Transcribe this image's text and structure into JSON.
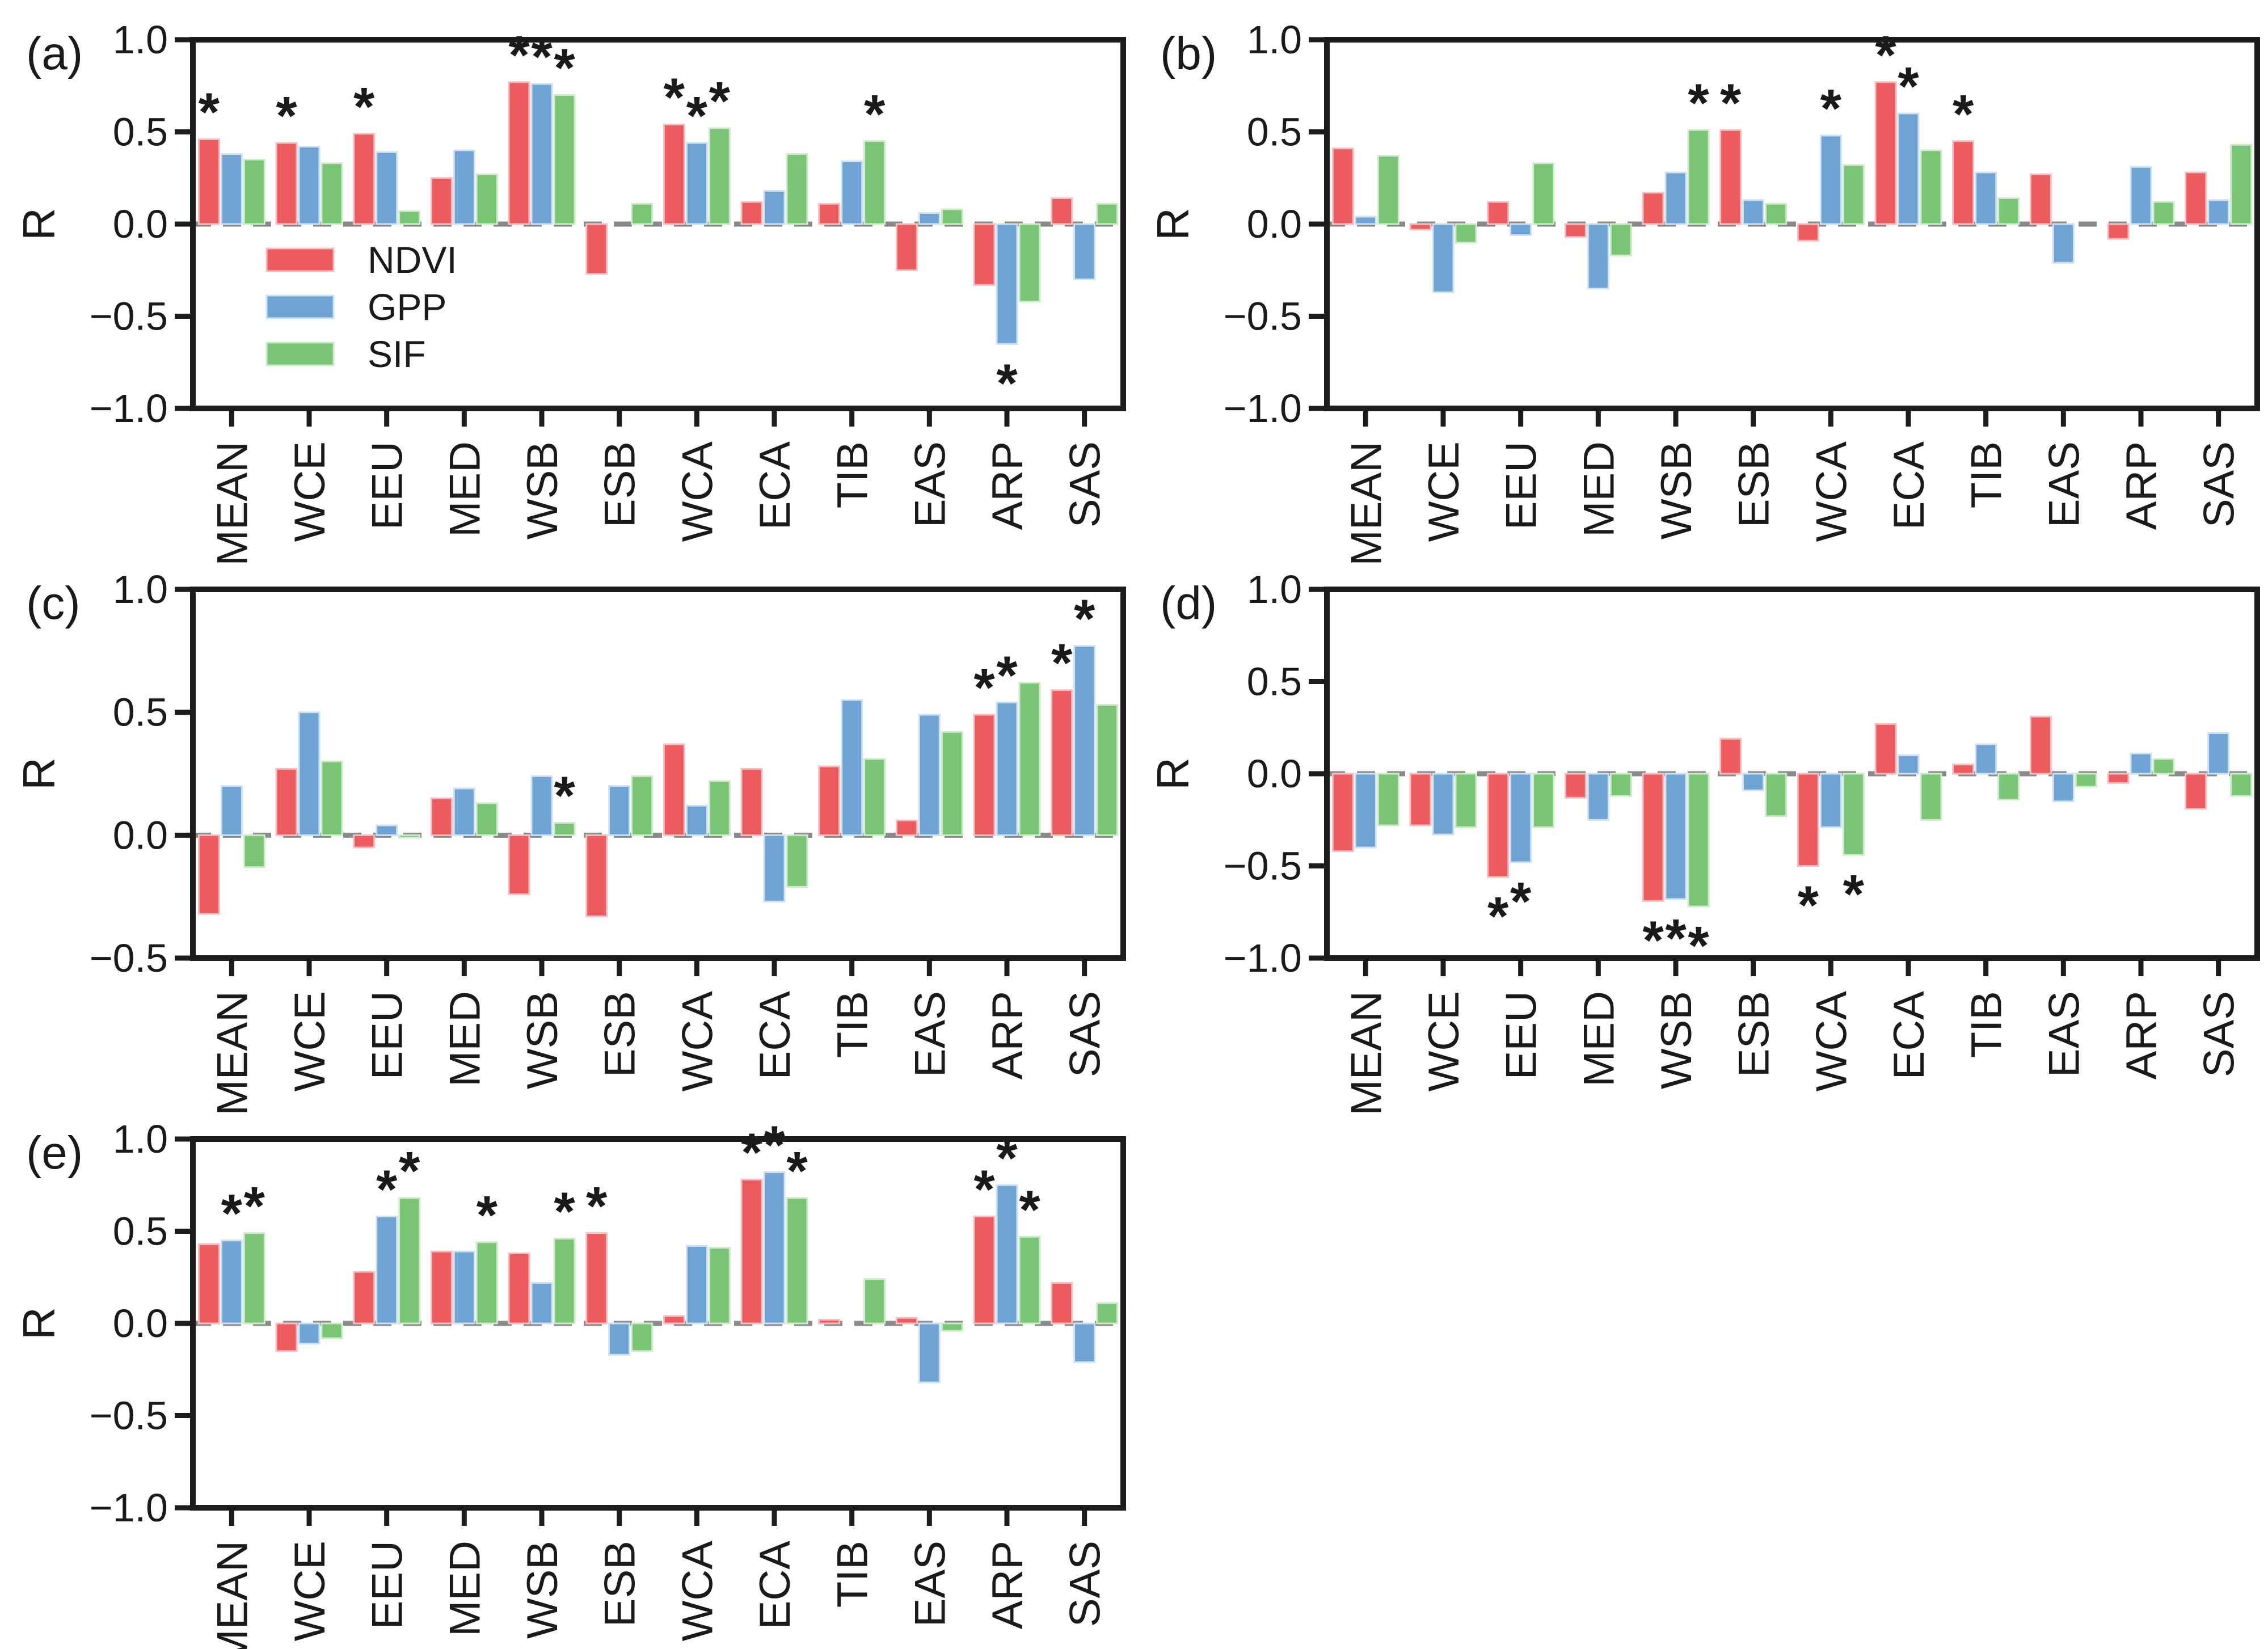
{
  "figure_title": "",
  "ylabel": "R",
  "styles": {
    "background": "#ffffff",
    "axis_color": "#1c1c1c",
    "text_color": "#1a1a1a",
    "zero_line_color": "#8a8a8a",
    "star_color": "#111111"
  },
  "legend": {
    "position": "inside-lower-left-of-panel-a",
    "items": [
      {
        "label": "NDVI",
        "color": "#ec5c5e",
        "edge": "#f7bdc0"
      },
      {
        "label": "GPP",
        "color": "#6fa3d4",
        "edge": "#cde1f2"
      },
      {
        "label": "SIF",
        "color": "#7ac476",
        "edge": "#cdeac9"
      }
    ]
  },
  "chart_data": [
    {
      "type": "bar",
      "id": "a",
      "panel": "(a)",
      "ylabel": "R",
      "ylim": [
        -1.0,
        1.0
      ],
      "yticks": [
        "1.0",
        "0.5",
        "0.0",
        "−0.5",
        "−1.0"
      ],
      "grid": false,
      "zero_line": "dashed",
      "show_legend": true,
      "categories": [
        "MEAN",
        "WCE",
        "EEU",
        "MED",
        "WSB",
        "ESB",
        "WCA",
        "ECA",
        "TIB",
        "EAS",
        "ARP",
        "SAS"
      ],
      "series": [
        {
          "name": "NDVI",
          "color": "#ec5c5e",
          "edge": "#f7bdc0",
          "values": [
            0.46,
            0.44,
            0.49,
            0.25,
            0.77,
            -0.27,
            0.54,
            0.12,
            0.11,
            -0.25,
            -0.33,
            0.14
          ],
          "significant_categories": [
            "MEAN",
            "WCE",
            "EEU",
            "WSB",
            "WCA"
          ]
        },
        {
          "name": "GPP",
          "color": "#6fa3d4",
          "edge": "#cde1f2",
          "values": [
            0.38,
            0.42,
            0.39,
            0.4,
            0.76,
            0.0,
            0.44,
            0.18,
            0.34,
            0.06,
            -0.65,
            -0.3
          ],
          "significant_categories": [
            "WSB",
            "WCA",
            "ARP"
          ]
        },
        {
          "name": "SIF",
          "color": "#7ac476",
          "edge": "#cdeac9",
          "values": [
            0.35,
            0.33,
            0.07,
            0.27,
            0.7,
            0.11,
            0.52,
            0.38,
            0.45,
            0.08,
            -0.42,
            0.11
          ],
          "significant_categories": [
            "WSB",
            "WCA",
            "TIB"
          ]
        }
      ]
    },
    {
      "type": "bar",
      "id": "b",
      "panel": "(b)",
      "ylabel": "R",
      "ylim": [
        -1.0,
        1.0
      ],
      "yticks": [
        "1.0",
        "0.5",
        "0.0",
        "−0.5",
        "−1.0"
      ],
      "grid": false,
      "zero_line": "dashed",
      "show_legend": false,
      "categories": [
        "MEAN",
        "WCE",
        "EEU",
        "MED",
        "WSB",
        "ESB",
        "WCA",
        "ECA",
        "TIB",
        "EAS",
        "ARP",
        "SAS"
      ],
      "series": [
        {
          "name": "NDVI",
          "color": "#ec5c5e",
          "edge": "#f7bdc0",
          "values": [
            0.41,
            -0.03,
            0.12,
            -0.07,
            0.17,
            0.51,
            -0.09,
            0.77,
            0.45,
            0.27,
            -0.08,
            0.28
          ],
          "significant_categories": [
            "ESB",
            "ECA",
            "TIB"
          ]
        },
        {
          "name": "GPP",
          "color": "#6fa3d4",
          "edge": "#cde1f2",
          "values": [
            0.04,
            -0.37,
            -0.06,
            -0.35,
            0.28,
            0.13,
            0.48,
            0.6,
            0.28,
            -0.21,
            0.31,
            0.13
          ],
          "significant_categories": [
            "WCA",
            "ECA"
          ]
        },
        {
          "name": "SIF",
          "color": "#7ac476",
          "edge": "#cdeac9",
          "values": [
            0.37,
            -0.1,
            0.33,
            -0.17,
            0.51,
            0.11,
            0.32,
            0.4,
            0.14,
            0.0,
            0.12,
            0.43
          ],
          "significant_categories": [
            "WSB"
          ]
        }
      ]
    },
    {
      "type": "bar",
      "id": "c",
      "panel": "(c)",
      "ylabel": "R",
      "ylim": [
        -0.5,
        1.0
      ],
      "yticks": [
        "1.0",
        "0.5",
        "0.0",
        "−0.5"
      ],
      "grid": false,
      "zero_line": "dashed",
      "show_legend": false,
      "categories": [
        "MEAN",
        "WCE",
        "EEU",
        "MED",
        "WSB",
        "ESB",
        "WCA",
        "ECA",
        "TIB",
        "EAS",
        "ARP",
        "SAS"
      ],
      "series": [
        {
          "name": "NDVI",
          "color": "#ec5c5e",
          "edge": "#f7bdc0",
          "values": [
            -0.32,
            0.27,
            -0.05,
            0.15,
            -0.24,
            -0.33,
            0.37,
            0.27,
            0.28,
            0.06,
            0.49,
            0.59
          ],
          "significant_categories": [
            "ARP",
            "SAS"
          ]
        },
        {
          "name": "GPP",
          "color": "#6fa3d4",
          "edge": "#cde1f2",
          "values": [
            0.2,
            0.5,
            0.04,
            0.19,
            0.24,
            0.2,
            0.12,
            -0.27,
            0.55,
            0.49,
            0.54,
            0.77
          ],
          "significant_categories": [
            "ARP",
            "SAS"
          ]
        },
        {
          "name": "SIF",
          "color": "#7ac476",
          "edge": "#cdeac9",
          "values": [
            -0.13,
            0.3,
            -0.01,
            0.13,
            0.05,
            0.24,
            0.22,
            -0.21,
            0.31,
            0.42,
            0.62,
            0.53
          ],
          "significant_categories": [
            "WSB"
          ]
        }
      ]
    },
    {
      "type": "bar",
      "id": "d",
      "panel": "(d)",
      "ylabel": "R",
      "ylim": [
        -1.0,
        1.0
      ],
      "yticks": [
        "1.0",
        "0.5",
        "0.0",
        "−0.5",
        "−1.0"
      ],
      "grid": false,
      "zero_line": "dashed",
      "show_legend": false,
      "categories": [
        "MEAN",
        "WCE",
        "EEU",
        "MED",
        "WSB",
        "ESB",
        "WCA",
        "ECA",
        "TIB",
        "EAS",
        "ARP",
        "SAS"
      ],
      "series": [
        {
          "name": "NDVI",
          "color": "#ec5c5e",
          "edge": "#f7bdc0",
          "values": [
            -0.42,
            -0.28,
            -0.56,
            -0.13,
            -0.69,
            0.19,
            -0.5,
            0.27,
            0.05,
            0.31,
            -0.05,
            -0.19
          ],
          "significant_categories": [
            "EEU",
            "WSB",
            "WCA"
          ]
        },
        {
          "name": "GPP",
          "color": "#6fa3d4",
          "edge": "#cde1f2",
          "values": [
            -0.4,
            -0.33,
            -0.48,
            -0.25,
            -0.68,
            -0.09,
            -0.29,
            0.1,
            0.16,
            -0.15,
            0.11,
            0.22
          ],
          "significant_categories": [
            "EEU",
            "WSB"
          ]
        },
        {
          "name": "SIF",
          "color": "#7ac476",
          "edge": "#cdeac9",
          "values": [
            -0.28,
            -0.29,
            -0.29,
            -0.12,
            -0.72,
            -0.23,
            -0.44,
            -0.25,
            -0.14,
            -0.07,
            0.08,
            -0.12
          ],
          "significant_categories": [
            "WSB",
            "WCA"
          ]
        }
      ]
    },
    {
      "type": "bar",
      "id": "e",
      "panel": "(e)",
      "ylabel": "R",
      "ylim": [
        -1.0,
        1.0
      ],
      "yticks": [
        "1.0",
        "0.5",
        "0.0",
        "−0.5",
        "−1.0"
      ],
      "grid": false,
      "zero_line": "dashed",
      "show_legend": false,
      "categories": [
        "MEAN",
        "WCE",
        "EEU",
        "MED",
        "WSB",
        "ESB",
        "WCA",
        "ECA",
        "TIB",
        "EAS",
        "ARP",
        "SAS"
      ],
      "series": [
        {
          "name": "NDVI",
          "color": "#ec5c5e",
          "edge": "#f7bdc0",
          "values": [
            0.43,
            -0.15,
            0.28,
            0.39,
            0.38,
            0.49,
            0.04,
            0.78,
            0.02,
            0.03,
            0.58,
            0.22
          ],
          "significant_categories": [
            "ESB",
            "ECA",
            "ARP"
          ]
        },
        {
          "name": "GPP",
          "color": "#6fa3d4",
          "edge": "#cde1f2",
          "values": [
            0.45,
            -0.11,
            0.58,
            0.39,
            0.22,
            -0.17,
            0.42,
            0.82,
            0.0,
            -0.32,
            0.75,
            -0.21
          ],
          "significant_categories": [
            "MEAN",
            "EEU",
            "ECA",
            "ARP"
          ]
        },
        {
          "name": "SIF",
          "color": "#7ac476",
          "edge": "#cdeac9",
          "values": [
            0.49,
            -0.08,
            0.68,
            0.44,
            0.46,
            -0.15,
            0.41,
            0.68,
            0.24,
            -0.04,
            0.47,
            0.11
          ],
          "significant_categories": [
            "MEAN",
            "EEU",
            "MED",
            "WSB",
            "ECA",
            "ARP"
          ]
        }
      ]
    }
  ]
}
